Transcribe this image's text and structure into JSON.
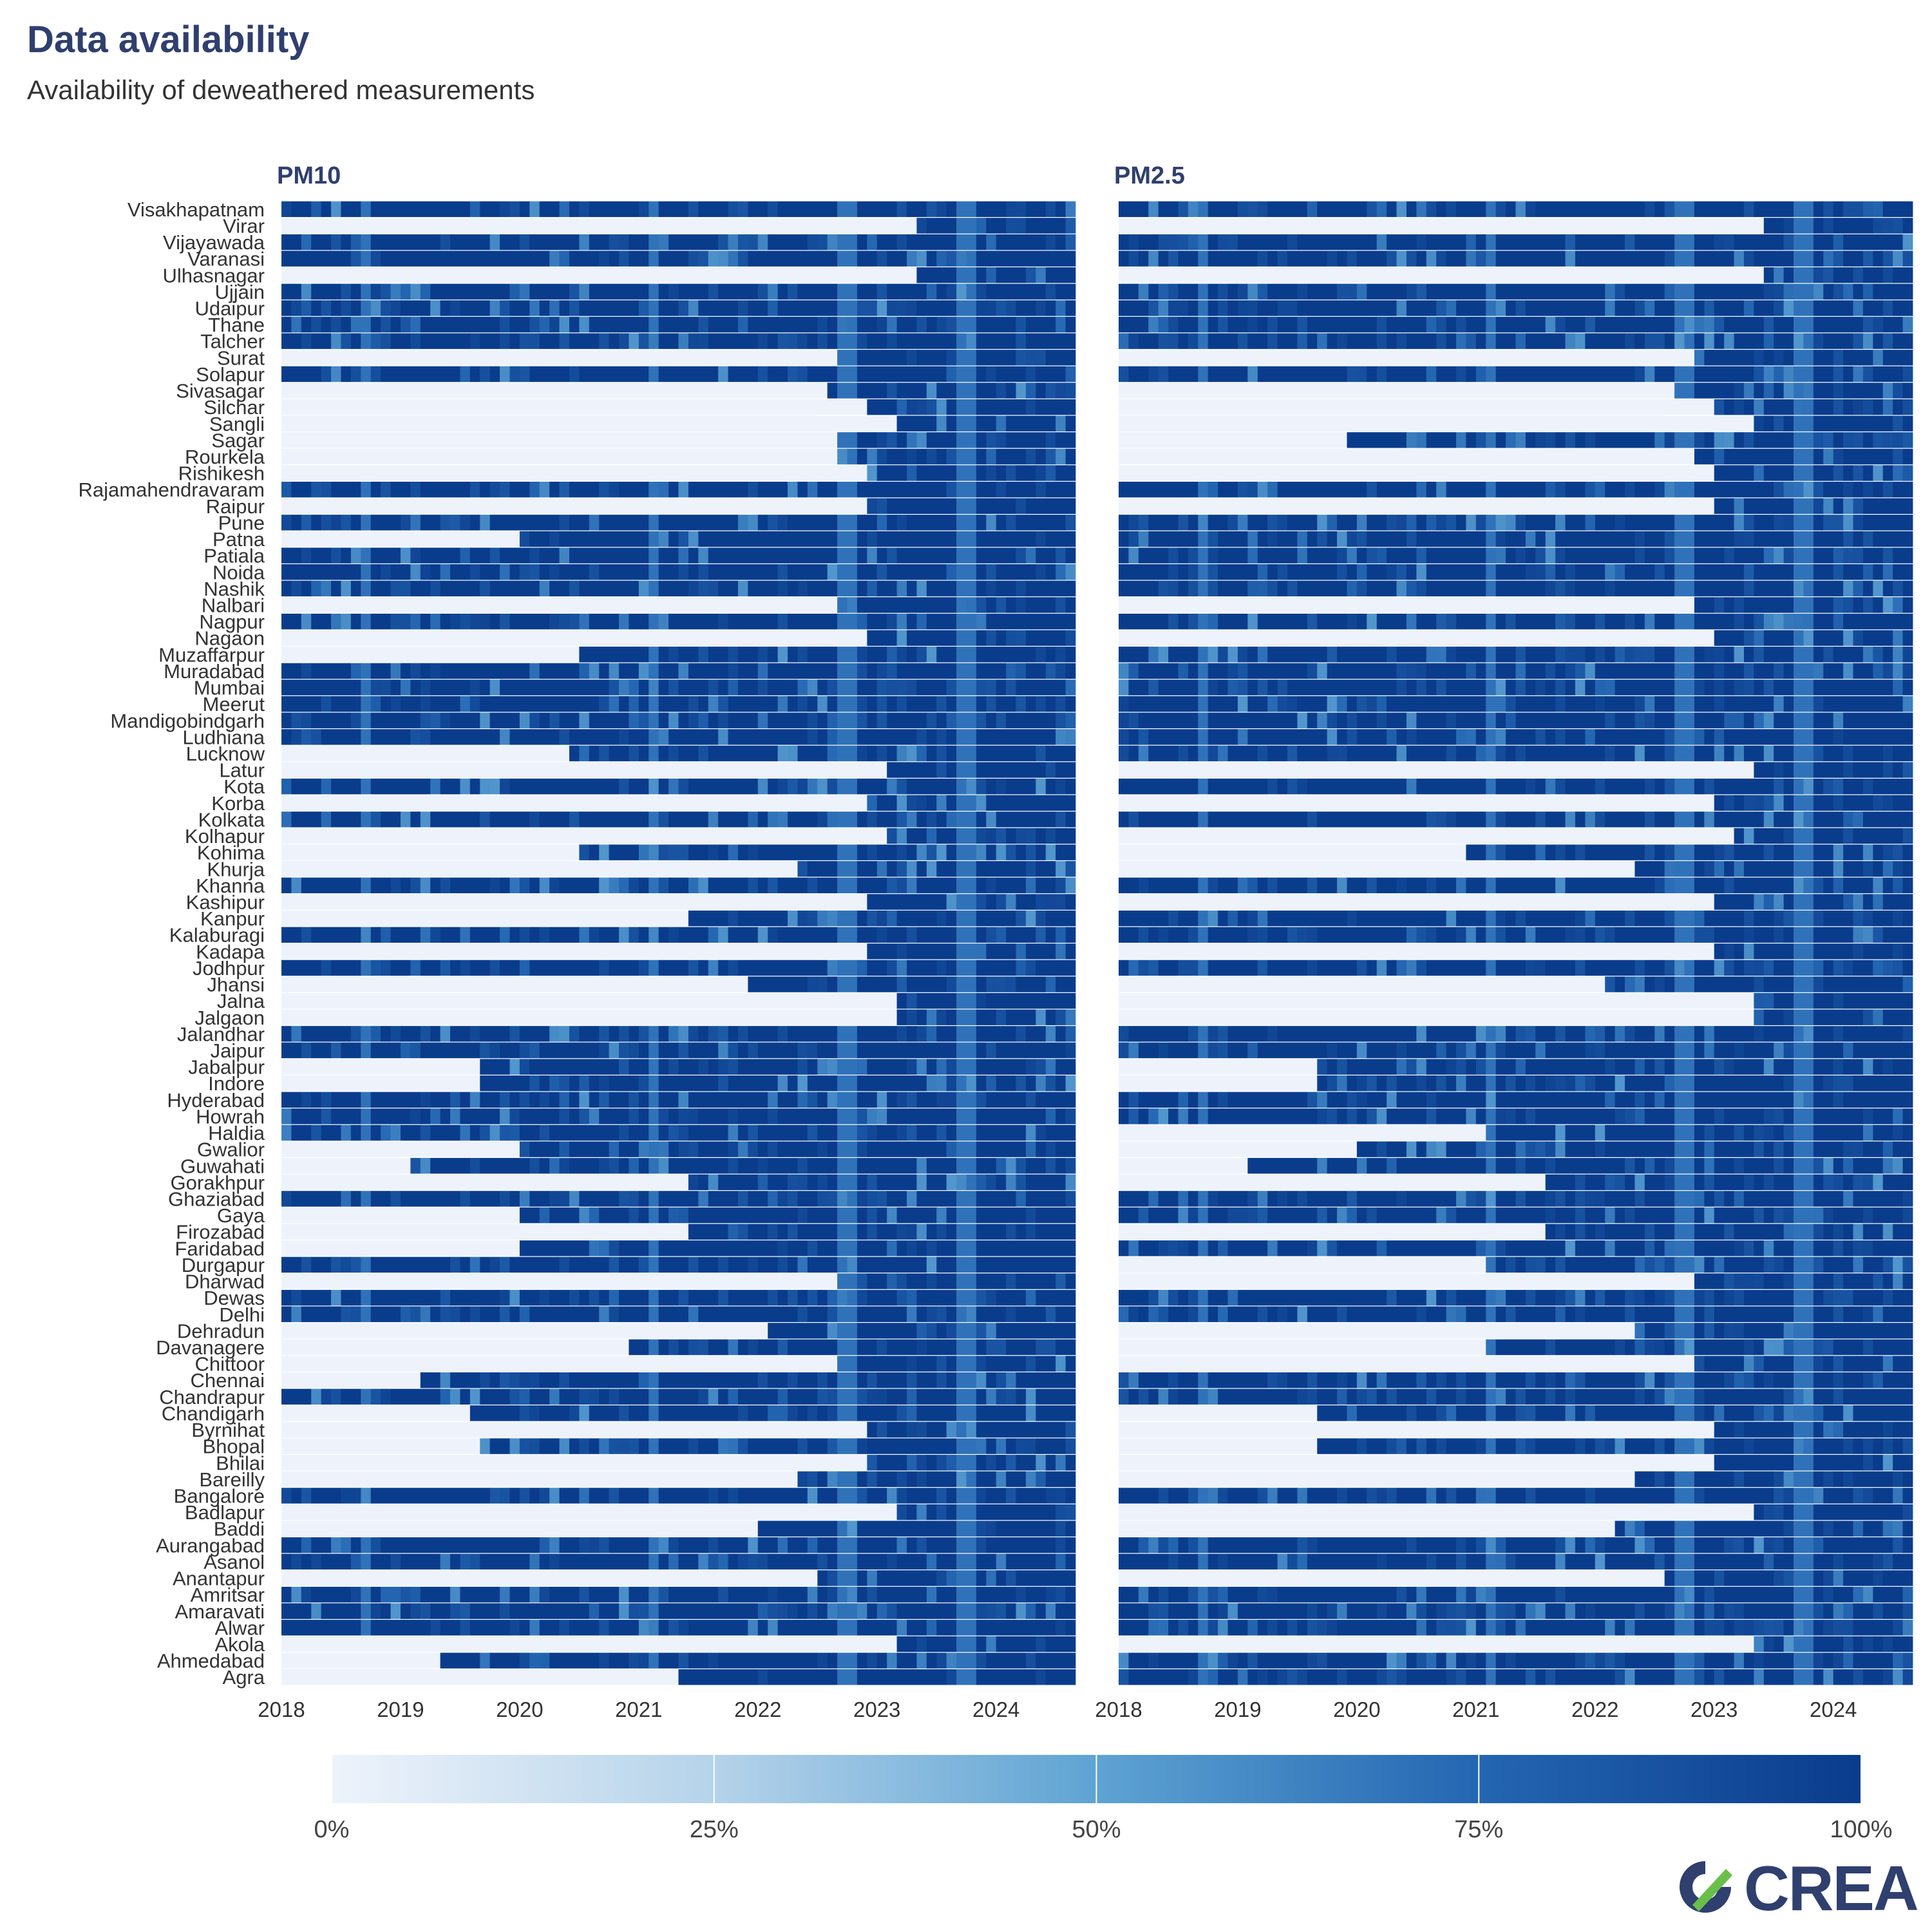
{
  "header": {
    "title": "Data availability",
    "subtitle": "Availability of deweathered measurements"
  },
  "colors": {
    "low": "#eef3fb",
    "high": "#0a3c8c",
    "text": "#2f3f6e",
    "logo_green": "#6abf4b",
    "logo_navy": "#2f3f6e"
  },
  "logo": {
    "text": "CREA"
  },
  "chart_data": {
    "type": "heatmap",
    "title": "Data availability",
    "subtitle": "Availability of deweathered measurements",
    "x_range": [
      "2018-01-01",
      "2024-08-31"
    ],
    "x_ticks": [
      "2018",
      "2019",
      "2020",
      "2021",
      "2022",
      "2023",
      "2024"
    ],
    "value_unit": "share of days with deweathered measurements",
    "colorbar": {
      "ticks": [
        "0%",
        "25%",
        "50%",
        "75%",
        "100%"
      ],
      "range": [
        0,
        1
      ]
    },
    "cities": [
      "Visakhapatnam",
      "Virar",
      "Vijayawada",
      "Varanasi",
      "Ulhasnagar",
      "Ujjain",
      "Udaipur",
      "Thane",
      "Talcher",
      "Surat",
      "Solapur",
      "Sivasagar",
      "Silchar",
      "Sangli",
      "Sagar",
      "Rourkela",
      "Rishikesh",
      "Rajamahendravaram",
      "Raipur",
      "Pune",
      "Patna",
      "Patiala",
      "Noida",
      "Nashik",
      "Nalbari",
      "Nagpur",
      "Nagaon",
      "Muzaffarpur",
      "Muradabad",
      "Mumbai",
      "Meerut",
      "Mandigobindgarh",
      "Ludhiana",
      "Lucknow",
      "Latur",
      "Kota",
      "Korba",
      "Kolkata",
      "Kolhapur",
      "Kohima",
      "Khurja",
      "Khanna",
      "Kashipur",
      "Kanpur",
      "Kalaburagi",
      "Kadapa",
      "Jodhpur",
      "Jhansi",
      "Jalna",
      "Jalgaon",
      "Jalandhar",
      "Jaipur",
      "Jabalpur",
      "Indore",
      "Hyderabad",
      "Howrah",
      "Haldia",
      "Gwalior",
      "Guwahati",
      "Gorakhpur",
      "Ghaziabad",
      "Gaya",
      "Firozabad",
      "Faridabad",
      "Durgapur",
      "Dharwad",
      "Dewas",
      "Delhi",
      "Dehradun",
      "Davanagere",
      "Chittoor",
      "Chennai",
      "Chandrapur",
      "Chandigarh",
      "Byrnihat",
      "Bhopal",
      "Bhilai",
      "Bareilly",
      "Bangalore",
      "Badlapur",
      "Baddi",
      "Aurangabad",
      "Asanol",
      "Anantapur",
      "Amritsar",
      "Amaravati",
      "Alwar",
      "Akola",
      "Ahmedabad",
      "Agra"
    ],
    "panels": [
      {
        "name": "PM10",
        "data_start_year": [
          2018.0,
          2023.3,
          2018.0,
          2018.0,
          2023.3,
          2018.0,
          2018.0,
          2018.0,
          2018.0,
          2022.7,
          2018.0,
          2022.6,
          2022.9,
          2023.2,
          2022.7,
          2022.7,
          2022.9,
          2018.0,
          2022.9,
          2018.0,
          2020.0,
          2018.0,
          2018.0,
          2018.0,
          2022.7,
          2018.0,
          2022.9,
          2020.5,
          2018.0,
          2018.0,
          2018.0,
          2018.0,
          2018.0,
          2020.4,
          2023.1,
          2018.0,
          2022.9,
          2018.0,
          2023.1,
          2020.5,
          2022.3,
          2018.0,
          2022.9,
          2021.4,
          2018.0,
          2022.9,
          2018.0,
          2021.9,
          2023.2,
          2023.2,
          2018.0,
          2018.0,
          2019.7,
          2019.7,
          2018.0,
          2018.0,
          2018.0,
          2020.0,
          2019.1,
          2021.4,
          2018.0,
          2020.0,
          2021.4,
          2020.0,
          2018.0,
          2022.7,
          2018.0,
          2018.0,
          2022.1,
          2020.9,
          2022.7,
          2019.2,
          2018.0,
          2019.6,
          2022.9,
          2019.7,
          2022.9,
          2022.3,
          2018.0,
          2023.2,
          2022.0,
          2018.0,
          2018.0,
          2022.5,
          2018.0,
          2018.0,
          2018.0,
          2023.2,
          2019.3,
          2021.3
        ]
      },
      {
        "name": "PM2.5",
        "data_start_year": [
          2018.0,
          2023.4,
          2018.0,
          2018.0,
          2023.4,
          2018.0,
          2018.0,
          2018.0,
          2018.0,
          2022.8,
          2018.0,
          2022.7,
          2023.0,
          2023.3,
          2019.9,
          2022.8,
          2023.0,
          2018.0,
          2023.0,
          2018.0,
          2018.0,
          2018.0,
          2018.0,
          2018.0,
          2022.8,
          2018.0,
          2023.0,
          2018.0,
          2018.0,
          2018.0,
          2018.0,
          2018.0,
          2018.0,
          2018.0,
          2023.3,
          2018.0,
          2023.0,
          2018.0,
          2023.2,
          2020.9,
          2022.3,
          2018.0,
          2023.0,
          2018.0,
          2018.0,
          2023.0,
          2018.0,
          2022.1,
          2023.3,
          2023.3,
          2018.0,
          2018.0,
          2019.7,
          2019.7,
          2018.0,
          2018.0,
          2021.1,
          2020.0,
          2019.1,
          2021.6,
          2018.0,
          2018.0,
          2021.6,
          2018.0,
          2021.1,
          2022.8,
          2018.0,
          2018.0,
          2022.3,
          2021.1,
          2022.8,
          2018.0,
          2018.0,
          2019.7,
          2023.0,
          2019.7,
          2023.0,
          2022.3,
          2018.0,
          2023.3,
          2022.2,
          2018.0,
          2018.0,
          2022.6,
          2018.0,
          2018.0,
          2018.0,
          2023.3,
          2018.0,
          2018.0
        ]
      }
    ]
  }
}
